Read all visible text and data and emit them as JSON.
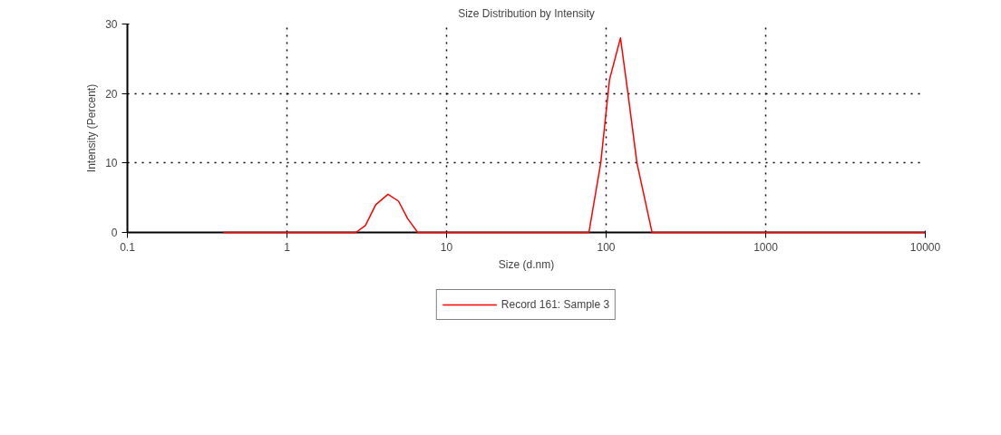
{
  "chart_data": {
    "type": "line",
    "title": "Size Distribution by Intensity",
    "xlabel": "Size (d.nm)",
    "ylabel": "Intensity (Percent)",
    "log": "x",
    "series": [
      {
        "name": "Record 161: Sample 3",
        "color": "#ff0000",
        "x": [
          0.4,
          1,
          2.7,
          3.1,
          3.6,
          4.3,
          5.0,
          5.7,
          6.6,
          10,
          50,
          78,
          92.5,
          105,
          123,
          137,
          156,
          194,
          1000,
          10000
        ],
        "values": [
          0,
          0,
          0,
          1,
          4,
          5.5,
          4.5,
          2,
          0,
          0,
          0,
          0,
          10,
          22,
          28,
          20,
          10,
          0,
          0,
          0
        ]
      }
    ],
    "xlim": [
      0.1,
      10000
    ],
    "xticks": [
      0.1,
      1,
      10,
      100,
      1000,
      10000
    ],
    "ylim": [
      0,
      30
    ],
    "yticks": [
      0,
      10,
      20,
      30
    ],
    "grid": true,
    "legend": "bottom",
    "line_style": "solid"
  }
}
